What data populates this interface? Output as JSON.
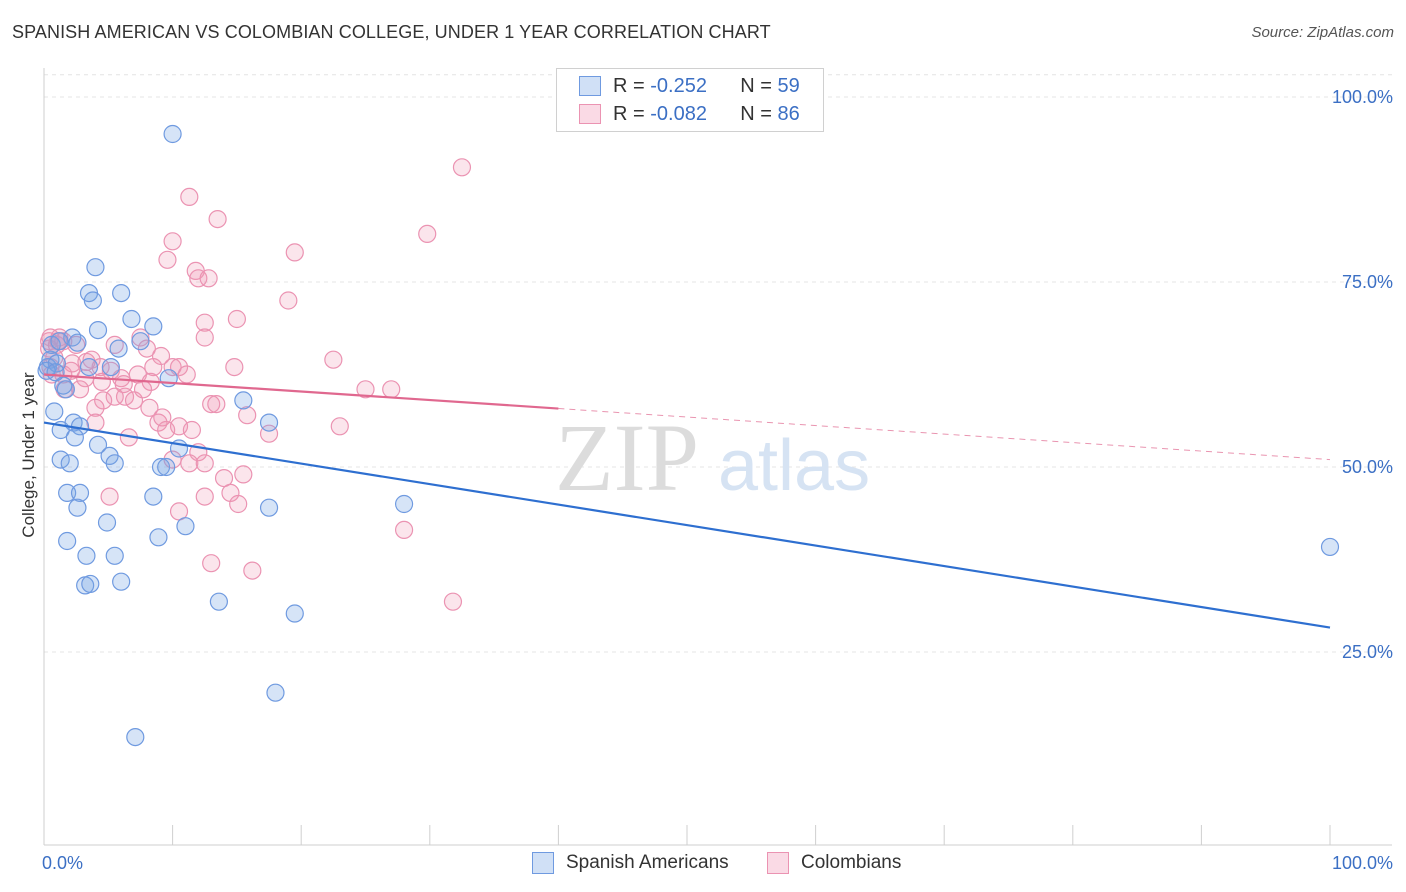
{
  "title": "SPANISH AMERICAN VS COLOMBIAN COLLEGE, UNDER 1 YEAR CORRELATION CHART",
  "source": "Source: ZipAtlas.com",
  "watermark": {
    "zip": "ZIP",
    "atlas": "atlas"
  },
  "legend": {
    "rows": [
      {
        "r_label": "R =",
        "r_value": "-0.252",
        "n_label": "N =",
        "n_value": "59"
      },
      {
        "r_label": "R =",
        "r_value": "-0.082",
        "n_label": "N =",
        "n_value": "86"
      }
    ]
  },
  "chart_data": {
    "type": "scatter",
    "title": "SPANISH AMERICAN VS COLOMBIAN COLLEGE, UNDER 1 YEAR CORRELATION CHART",
    "xlabel": "",
    "ylabel": "College, Under 1 year",
    "xlim": [
      0,
      100
    ],
    "ylim": [
      0,
      103
    ],
    "x_tick_labels": [
      "0.0%",
      "100.0%"
    ],
    "y_ticks": [
      25,
      50,
      75,
      100
    ],
    "y_tick_labels": [
      "25.0%",
      "50.0%",
      "75.0%",
      "100.0%"
    ],
    "grid": true,
    "colors": {
      "spanish_fill": "rgba(120,165,230,0.30)",
      "spanish_stroke": "#6f9ae0",
      "spanish_line": "#2e6fd0",
      "colombian_fill": "rgba(240,150,180,0.25)",
      "colombian_stroke": "#eb93b2",
      "colombian_line": "#e0688f"
    },
    "series": [
      {
        "name": "Spanish Americans",
        "r": -0.252,
        "n": 59,
        "trend": {
          "x0": 0,
          "y0": 56,
          "x1": 100,
          "y1": 28.3,
          "solid_to": 100
        },
        "points": [
          [
            10,
            95
          ],
          [
            4,
            77
          ],
          [
            3.5,
            73.5
          ],
          [
            6,
            73.5
          ],
          [
            3.8,
            72.5
          ],
          [
            6.8,
            70
          ],
          [
            8.5,
            69
          ],
          [
            4.2,
            68.5
          ],
          [
            2.2,
            67.5
          ],
          [
            7.5,
            67
          ],
          [
            5.8,
            66
          ],
          [
            0.5,
            64.5
          ],
          [
            0.3,
            63.5
          ],
          [
            1,
            64
          ],
          [
            5.2,
            63.5
          ],
          [
            3.5,
            63.5
          ],
          [
            0.2,
            63
          ],
          [
            9.7,
            62
          ],
          [
            1.5,
            61
          ],
          [
            1.7,
            60.5
          ],
          [
            15.5,
            59
          ],
          [
            0.8,
            57.5
          ],
          [
            17.5,
            56
          ],
          [
            2.3,
            56
          ],
          [
            1.3,
            55
          ],
          [
            2.8,
            55.5
          ],
          [
            2.4,
            54
          ],
          [
            4.2,
            53
          ],
          [
            10.5,
            52.5
          ],
          [
            5.1,
            51.5
          ],
          [
            1.3,
            51
          ],
          [
            2,
            50.5
          ],
          [
            5.5,
            50.5
          ],
          [
            9.1,
            50
          ],
          [
            9.5,
            50
          ],
          [
            1.8,
            46.5
          ],
          [
            2.8,
            46.5
          ],
          [
            8.5,
            46
          ],
          [
            28,
            45
          ],
          [
            2.6,
            44.5
          ],
          [
            17.5,
            44.5
          ],
          [
            4.9,
            42.5
          ],
          [
            11,
            42
          ],
          [
            1.8,
            40
          ],
          [
            8.9,
            40.5
          ],
          [
            3.3,
            38
          ],
          [
            5.5,
            38
          ],
          [
            6,
            34.5
          ],
          [
            3.2,
            34
          ],
          [
            3.6,
            34.2
          ],
          [
            13.6,
            31.8
          ],
          [
            19.5,
            30.2
          ],
          [
            18,
            19.5
          ],
          [
            7.1,
            13.5
          ],
          [
            100,
            39.2
          ],
          [
            0.6,
            66.5
          ],
          [
            1.2,
            67
          ],
          [
            0.9,
            62.8
          ],
          [
            2.6,
            66.8
          ]
        ]
      },
      {
        "name": "Colombians",
        "r": -0.082,
        "n": 86,
        "trend": {
          "x0": 0,
          "y0": 62.5,
          "x1": 100,
          "y1": 51,
          "solid_to": 40
        },
        "points": [
          [
            32.5,
            90.5
          ],
          [
            11.3,
            86.5
          ],
          [
            13.5,
            83.5
          ],
          [
            29.8,
            81.5
          ],
          [
            10,
            80.5
          ],
          [
            19.5,
            79
          ],
          [
            9.6,
            78
          ],
          [
            11.8,
            76.5
          ],
          [
            12,
            75.5
          ],
          [
            12.8,
            75.5
          ],
          [
            19,
            72.5
          ],
          [
            15,
            70
          ],
          [
            12.5,
            69.5
          ],
          [
            12.5,
            67.5
          ],
          [
            0.5,
            67.5
          ],
          [
            1.2,
            67.5
          ],
          [
            7.5,
            67.5
          ],
          [
            0.4,
            67
          ],
          [
            1.1,
            67
          ],
          [
            1.5,
            67
          ],
          [
            2.5,
            66.5
          ],
          [
            5.5,
            66.5
          ],
          [
            0.4,
            66
          ],
          [
            8,
            66
          ],
          [
            9.1,
            65
          ],
          [
            22.5,
            64.5
          ],
          [
            3.7,
            64.5
          ],
          [
            2.2,
            64
          ],
          [
            0.5,
            63.5
          ],
          [
            14.8,
            63.5
          ],
          [
            8.5,
            63.5
          ],
          [
            10,
            63.5
          ],
          [
            10.5,
            63.5
          ],
          [
            2.1,
            63
          ],
          [
            4.4,
            63.5
          ],
          [
            5.2,
            63
          ],
          [
            1.5,
            62.5
          ],
          [
            7.3,
            62.5
          ],
          [
            11.1,
            62.5
          ],
          [
            0.6,
            62.5
          ],
          [
            3.2,
            62
          ],
          [
            6,
            62
          ],
          [
            4.5,
            61.5
          ],
          [
            8.3,
            61.5
          ],
          [
            2.8,
            60.5
          ],
          [
            25,
            60.5
          ],
          [
            27,
            60.5
          ],
          [
            1.6,
            60.5
          ],
          [
            6.3,
            59.5
          ],
          [
            5.5,
            59.5
          ],
          [
            4.6,
            59
          ],
          [
            7,
            59
          ],
          [
            13,
            58.5
          ],
          [
            13.4,
            58.5
          ],
          [
            8.2,
            58
          ],
          [
            4,
            58
          ],
          [
            15.8,
            57
          ],
          [
            4,
            56
          ],
          [
            8.9,
            56
          ],
          [
            10.5,
            55.5
          ],
          [
            23,
            55.5
          ],
          [
            9.5,
            55
          ],
          [
            17.5,
            54.5
          ],
          [
            11.5,
            55
          ],
          [
            6.6,
            54
          ],
          [
            12,
            52
          ],
          [
            10,
            51
          ],
          [
            11.3,
            50.5
          ],
          [
            12.5,
            50.5
          ],
          [
            15.5,
            49
          ],
          [
            14,
            48.5
          ],
          [
            14.5,
            46.5
          ],
          [
            12.5,
            46
          ],
          [
            5.1,
            46
          ],
          [
            10.5,
            44
          ],
          [
            15.1,
            45
          ],
          [
            28,
            41.5
          ],
          [
            13,
            37
          ],
          [
            16.2,
            36
          ],
          [
            31.8,
            31.8
          ],
          [
            1,
            66.5
          ],
          [
            0.8,
            64.8
          ],
          [
            6.2,
            61.2
          ],
          [
            3.3,
            64.2
          ],
          [
            7.7,
            60.5
          ],
          [
            9.2,
            56.7
          ]
        ]
      }
    ]
  },
  "bottom_legend": {
    "items": [
      {
        "label": "Spanish Americans"
      },
      {
        "label": "Colombians"
      }
    ]
  }
}
